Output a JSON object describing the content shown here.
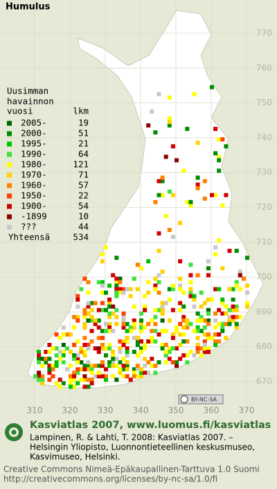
{
  "title": "Humulus",
  "legend": {
    "heading": [
      "Uusimman",
      "havainnon"
    ],
    "col_year": "vuosi",
    "col_count": "lkm",
    "rows": [
      {
        "label": "2005-",
        "count": 19,
        "color": "#006400"
      },
      {
        "label": "2000-",
        "count": 51,
        "color": "#008c00"
      },
      {
        "label": "1995-",
        "count": 21,
        "color": "#00c000"
      },
      {
        "label": "1990-",
        "count": 64,
        "color": "#3ee03e"
      },
      {
        "label": "1980-",
        "count": 121,
        "color": "#ffff00"
      },
      {
        "label": "1970-",
        "count": 71,
        "color": "#ffd200"
      },
      {
        "label": "1960-",
        "count": 57,
        "color": "#ff8000"
      },
      {
        "label": "1950-",
        "count": 22,
        "color": "#ff4000"
      },
      {
        "label": "1900-",
        "count": 54,
        "color": "#d00000"
      },
      {
        "label": "-1899",
        "count": 10,
        "color": "#8c0000"
      },
      {
        "label": "???",
        "count": 44,
        "color": "#c8c8c8"
      }
    ],
    "total_label": "Yhteensä",
    "total": 534
  },
  "grid": {
    "y_labels": [
      770,
      760,
      750,
      740,
      730,
      720,
      710,
      700,
      690,
      680,
      670
    ],
    "x_labels": [
      310,
      320,
      330,
      340,
      350,
      360,
      370
    ]
  },
  "license_badge": "BY-NC-SA",
  "footer": {
    "title": "Kasviatlas 2007, www.luomus.fi/kasviatlas",
    "citation": [
      "Lampinen, R. & Lahti, T. 2008: Kasviatlas 2007. –",
      "Helsingin Yliopisto, Luonnontieteellinen keskusmuseo,",
      "Kasvimuseo, Helsinki."
    ],
    "license": [
      "Creative Commons Nimeä-Epäkaupallinen-Tarttuva 1.0 Suomi",
      "http://creativecommons.org/licenses/by-nc-sa/1.0/fi"
    ]
  }
}
